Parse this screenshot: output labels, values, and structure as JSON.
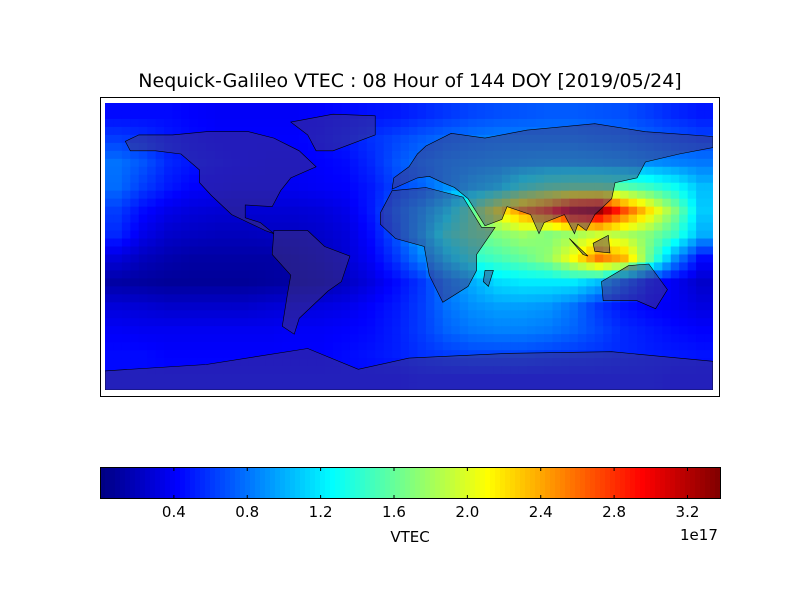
{
  "chart_data": {
    "type": "heatmap",
    "title": "Nequick-Galileo VTEC : 08 Hour of 144 DOY [2019/05/24]",
    "colormap": "jet",
    "value_range": [
      0.0,
      3.38
    ],
    "value_scale": "1e17",
    "lon_centers": [
      -172.5,
      -157.5,
      -142.5,
      -127.5,
      -112.5,
      -97.5,
      -82.5,
      -67.5,
      -52.5,
      -37.5,
      -22.5,
      -7.5,
      7.5,
      22.5,
      37.5,
      52.5,
      67.5,
      82.5,
      97.5,
      112.5,
      127.5,
      142.5,
      157.5,
      172.5
    ],
    "lat_centers": [
      82.5,
      67.5,
      52.5,
      37.5,
      22.5,
      7.5,
      -7.5,
      -22.5,
      -37.5,
      -52.5,
      -67.5,
      -82.5
    ],
    "values": [
      [
        0.45,
        0.45,
        0.45,
        0.42,
        0.4,
        0.4,
        0.4,
        0.4,
        0.42,
        0.45,
        0.48,
        0.5,
        0.55,
        0.6,
        0.65,
        0.68,
        0.7,
        0.72,
        0.72,
        0.7,
        0.68,
        0.62,
        0.55,
        0.5
      ],
      [
        0.62,
        0.58,
        0.5,
        0.45,
        0.42,
        0.42,
        0.42,
        0.42,
        0.45,
        0.5,
        0.58,
        0.65,
        0.72,
        0.78,
        0.82,
        0.85,
        0.85,
        0.85,
        0.85,
        0.82,
        0.8,
        0.75,
        0.7,
        0.65
      ],
      [
        0.8,
        0.7,
        0.55,
        0.48,
        0.45,
        0.42,
        0.4,
        0.4,
        0.42,
        0.45,
        0.55,
        0.7,
        0.8,
        0.88,
        0.92,
        0.95,
        0.98,
        1.0,
        1.0,
        0.98,
        0.95,
        0.9,
        0.85,
        0.82
      ],
      [
        0.78,
        0.62,
        0.5,
        0.42,
        0.4,
        0.38,
        0.38,
        0.38,
        0.4,
        0.42,
        0.5,
        0.65,
        0.75,
        0.9,
        1.05,
        1.15,
        1.4,
        1.55,
        1.6,
        1.6,
        1.55,
        1.45,
        1.3,
        1.05
      ],
      [
        0.62,
        0.45,
        0.35,
        0.3,
        0.28,
        0.28,
        0.28,
        0.28,
        0.3,
        0.35,
        0.5,
        0.75,
        0.95,
        1.2,
        1.6,
        2.1,
        2.5,
        2.75,
        3.2,
        3.3,
        2.7,
        2.2,
        1.7,
        1.1
      ],
      [
        0.55,
        0.35,
        0.25,
        0.22,
        0.2,
        0.2,
        0.22,
        0.22,
        0.25,
        0.3,
        0.45,
        0.7,
        1.0,
        1.4,
        1.6,
        1.7,
        1.8,
        1.7,
        1.8,
        1.95,
        1.85,
        1.7,
        1.45,
        1.0
      ],
      [
        0.3,
        0.2,
        0.15,
        0.12,
        0.12,
        0.12,
        0.12,
        0.15,
        0.2,
        0.28,
        0.4,
        0.6,
        0.85,
        1.15,
        1.4,
        1.5,
        1.6,
        1.75,
        2.1,
        2.55,
        2.35,
        1.6,
        0.9,
        0.45
      ],
      [
        0.12,
        0.1,
        0.08,
        0.08,
        0.08,
        0.08,
        0.1,
        0.12,
        0.15,
        0.22,
        0.32,
        0.45,
        0.6,
        0.85,
        1.0,
        1.15,
        1.2,
        1.2,
        1.2,
        1.05,
        0.75,
        0.5,
        0.38,
        0.25
      ],
      [
        0.3,
        0.28,
        0.25,
        0.25,
        0.25,
        0.25,
        0.28,
        0.3,
        0.32,
        0.35,
        0.42,
        0.5,
        0.62,
        0.8,
        0.9,
        0.95,
        0.95,
        0.92,
        0.8,
        0.6,
        0.48,
        0.42,
        0.38,
        0.32
      ],
      [
        0.4,
        0.38,
        0.38,
        0.38,
        0.38,
        0.38,
        0.38,
        0.4,
        0.4,
        0.42,
        0.45,
        0.52,
        0.62,
        0.75,
        0.82,
        0.85,
        0.85,
        0.82,
        0.75,
        0.65,
        0.55,
        0.5,
        0.45,
        0.42
      ],
      [
        0.45,
        0.45,
        0.42,
        0.42,
        0.42,
        0.42,
        0.42,
        0.42,
        0.42,
        0.45,
        0.48,
        0.52,
        0.58,
        0.62,
        0.65,
        0.65,
        0.65,
        0.62,
        0.6,
        0.58,
        0.55,
        0.52,
        0.5,
        0.48
      ],
      [
        0.45,
        0.45,
        0.45,
        0.45,
        0.45,
        0.45,
        0.45,
        0.45,
        0.45,
        0.45,
        0.45,
        0.45,
        0.48,
        0.48,
        0.48,
        0.48,
        0.48,
        0.48,
        0.48,
        0.48,
        0.48,
        0.48,
        0.45,
        0.45
      ]
    ],
    "colorbar": {
      "label": "VTEC",
      "ticks": [
        "0.4",
        "0.8",
        "1.2",
        "1.6",
        "2.0",
        "2.4",
        "2.8",
        "3.2"
      ],
      "tick_values": [
        0.4,
        0.8,
        1.2,
        1.6,
        2.0,
        2.4,
        2.8,
        3.2
      ],
      "offset_text": "1e17",
      "orientation": "horizontal",
      "placement": "bottom"
    }
  }
}
